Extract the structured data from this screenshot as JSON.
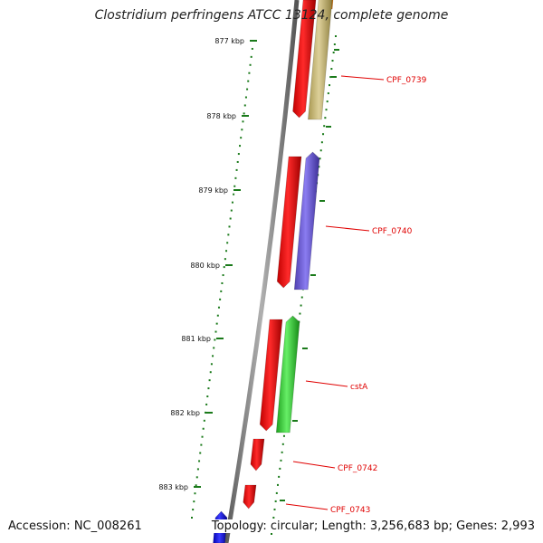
{
  "title": "Clostridium perfringens ATCC 13124, complete genome",
  "accession": "Accession: NC_008261",
  "topology": "Topology: circular; Length: 3,256,683 bp; Genes: 2,993",
  "colors": {
    "backbone": "#8a8a8a",
    "tick": "#1a7a1a",
    "label": "#e00000",
    "cds_forward": "#ff0000",
    "cds_olive": "#c8b870",
    "cds_purple": "#7060d0",
    "cds_green": "#33cc33",
    "cds_blue": "#1010ee",
    "cds_orange": "#ff9900"
  },
  "ticks": [
    {
      "label": "877 kbp",
      "kbp": 877
    },
    {
      "label": "878 kbp",
      "kbp": 878
    },
    {
      "label": "879 kbp",
      "kbp": 879
    },
    {
      "label": "880 kbp",
      "kbp": 880
    },
    {
      "label": "881 kbp",
      "kbp": 881
    },
    {
      "label": "882 kbp",
      "kbp": 882
    },
    {
      "label": "883 kbp",
      "kbp": 883
    }
  ],
  "genes": [
    {
      "name": "CPF_0739",
      "labeled": true
    },
    {
      "name": "CPF_0740",
      "labeled": true
    },
    {
      "name": "cstA",
      "labeled": true
    },
    {
      "name": "CPF_0742",
      "labeled": true
    },
    {
      "name": "CPF_0743",
      "labeled": true
    }
  ]
}
